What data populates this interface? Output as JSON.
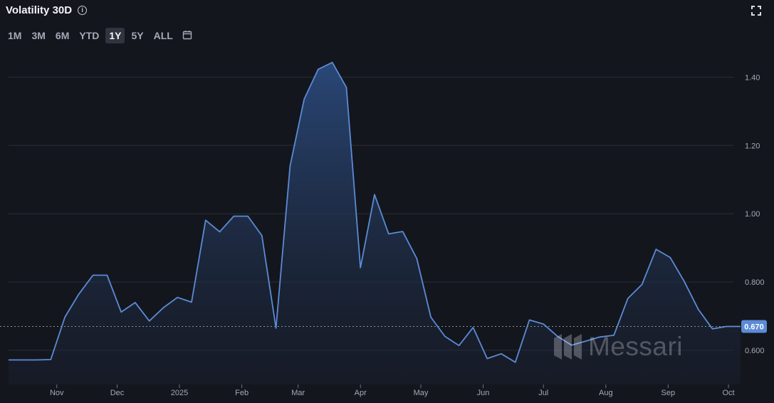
{
  "header": {
    "title": "Volatility 30D",
    "info_icon": "info-icon",
    "expand_icon": "expand-icon"
  },
  "ranges": [
    {
      "label": "1M",
      "active": false
    },
    {
      "label": "3M",
      "active": false
    },
    {
      "label": "6M",
      "active": false
    },
    {
      "label": "YTD",
      "active": false
    },
    {
      "label": "1Y",
      "active": true
    },
    {
      "label": "5Y",
      "active": false
    },
    {
      "label": "ALL",
      "active": false
    }
  ],
  "calendar_icon": "calendar-icon",
  "watermark": {
    "text": "Messari"
  },
  "colors": {
    "background": "#14161d",
    "line": "#5b8bd6",
    "current_badge": "#5b8bd6",
    "grid": "#2a2e39"
  },
  "chart_data": {
    "type": "area",
    "title": "Volatility 30D",
    "xlabel": "",
    "ylabel": "",
    "x_ticks": [
      "Nov",
      "Dec",
      "2025",
      "Feb",
      "Mar",
      "Apr",
      "May",
      "Jun",
      "Jul",
      "Aug",
      "Sep",
      "Oct"
    ],
    "y_ticks": [
      "0.600",
      "0.800",
      "1.00",
      "1.20",
      "1.40"
    ],
    "y_tick_values": [
      0.6,
      0.8,
      1.0,
      1.2,
      1.4
    ],
    "ylim": [
      0.5,
      1.48
    ],
    "current_value": 0.67,
    "current_label": "0.670",
    "grid": true,
    "series": [
      {
        "values": [
          {
            "x": "2024-10-08",
            "y": 0.572
          },
          {
            "x": "2024-10-15",
            "y": 0.572
          },
          {
            "x": "2024-10-22",
            "y": 0.572
          },
          {
            "x": "2024-10-29",
            "y": 0.573
          },
          {
            "x": "2024-11-05",
            "y": 0.697
          },
          {
            "x": "2024-11-12",
            "y": 0.765
          },
          {
            "x": "2024-11-19",
            "y": 0.82
          },
          {
            "x": "2024-11-26",
            "y": 0.82
          },
          {
            "x": "2024-12-03",
            "y": 0.712
          },
          {
            "x": "2024-12-10",
            "y": 0.74
          },
          {
            "x": "2024-12-17",
            "y": 0.686
          },
          {
            "x": "2024-12-24",
            "y": 0.725
          },
          {
            "x": "2024-12-31",
            "y": 0.755
          },
          {
            "x": "2025-01-07",
            "y": 0.741
          },
          {
            "x": "2025-01-14",
            "y": 0.981
          },
          {
            "x": "2025-01-21",
            "y": 0.947
          },
          {
            "x": "2025-01-28",
            "y": 0.993
          },
          {
            "x": "2025-02-04",
            "y": 0.993
          },
          {
            "x": "2025-02-11",
            "y": 0.936
          },
          {
            "x": "2025-02-18",
            "y": 0.665
          },
          {
            "x": "2025-02-25",
            "y": 1.14
          },
          {
            "x": "2025-03-04",
            "y": 1.336
          },
          {
            "x": "2025-03-11",
            "y": 1.423
          },
          {
            "x": "2025-03-18",
            "y": 1.443
          },
          {
            "x": "2025-03-25",
            "y": 1.37
          },
          {
            "x": "2025-04-01",
            "y": 0.842
          },
          {
            "x": "2025-04-08",
            "y": 1.056
          },
          {
            "x": "2025-04-15",
            "y": 0.941
          },
          {
            "x": "2025-04-22",
            "y": 0.948
          },
          {
            "x": "2025-04-29",
            "y": 0.869
          },
          {
            "x": "2025-05-06",
            "y": 0.697
          },
          {
            "x": "2025-05-13",
            "y": 0.641
          },
          {
            "x": "2025-05-20",
            "y": 0.614
          },
          {
            "x": "2025-05-27",
            "y": 0.667
          },
          {
            "x": "2025-06-03",
            "y": 0.576
          },
          {
            "x": "2025-06-10",
            "y": 0.59
          },
          {
            "x": "2025-06-17",
            "y": 0.565
          },
          {
            "x": "2025-06-24",
            "y": 0.689
          },
          {
            "x": "2025-07-01",
            "y": 0.677
          },
          {
            "x": "2025-07-08",
            "y": 0.641
          },
          {
            "x": "2025-07-15",
            "y": 0.615
          },
          {
            "x": "2025-07-22",
            "y": 0.627
          },
          {
            "x": "2025-07-29",
            "y": 0.639
          },
          {
            "x": "2025-08-05",
            "y": 0.644
          },
          {
            "x": "2025-08-12",
            "y": 0.752
          },
          {
            "x": "2025-08-19",
            "y": 0.793
          },
          {
            "x": "2025-08-26",
            "y": 0.896
          },
          {
            "x": "2025-09-02",
            "y": 0.872
          },
          {
            "x": "2025-09-09",
            "y": 0.802
          },
          {
            "x": "2025-09-16",
            "y": 0.72
          },
          {
            "x": "2025-09-23",
            "y": 0.663
          },
          {
            "x": "2025-09-30",
            "y": 0.67
          },
          {
            "x": "2025-10-07",
            "y": 0.67
          }
        ]
      }
    ]
  }
}
